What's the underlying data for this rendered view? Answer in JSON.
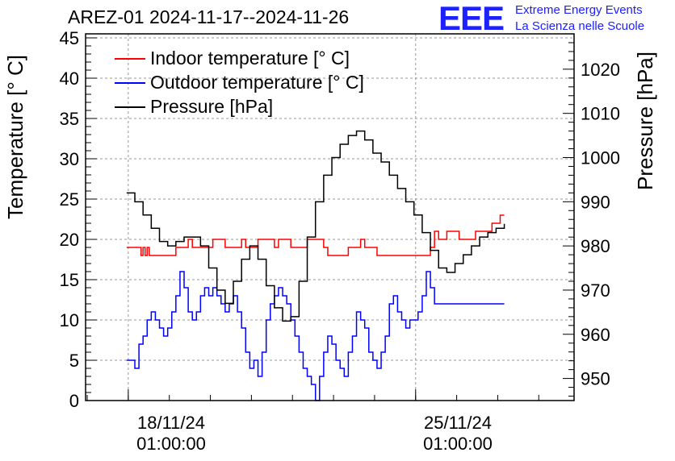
{
  "title": "AREZ-01 2024-11-17--2024-11-26",
  "logo": {
    "text": "EEE",
    "line1": "Extreme Energy Events",
    "line2": "La Scienza nelle Scuole"
  },
  "colors": {
    "indoor": "#ff0000",
    "outdoor": "#0000ff",
    "pressure": "#000000",
    "logo": "#1d20ff"
  },
  "chart_data": {
    "type": "line",
    "ylabel_left": "Temperature [° C]",
    "ylabel_right": "Pressure [hPa]",
    "y_left_lim": [
      0,
      45.5
    ],
    "y_right_lim": [
      945,
      1028
    ],
    "y_left_ticks": [
      0,
      5,
      10,
      15,
      20,
      25,
      30,
      35,
      40,
      45
    ],
    "y_right_ticks": [
      950,
      960,
      970,
      980,
      990,
      1000,
      1010,
      1020
    ],
    "x_ticks": [
      {
        "line1": "18/11/24",
        "line2": "01:00:00",
        "day": 1.04
      },
      {
        "line1": "25/11/24",
        "line2": "01:00:00",
        "day": 8.04
      }
    ],
    "x_range_days": [
      0,
      11.9
    ],
    "grid": true,
    "legend_placement": "top-left",
    "series": [
      {
        "name": "Indoor temperature [° C]",
        "axis": "left",
        "x": [
          1.0,
          1.3,
          1.35,
          1.4,
          1.45,
          1.5,
          1.55,
          1.6,
          2.1,
          2.2,
          2.5,
          2.6,
          3.0,
          3.1,
          3.4,
          3.5,
          3.8,
          3.9,
          4.2,
          4.3,
          4.6,
          4.7,
          5.0,
          5.1,
          5.4,
          5.5,
          5.8,
          5.9,
          6.3,
          6.4,
          6.7,
          6.8,
          7.1,
          7.2,
          7.4,
          7.5,
          7.8,
          8.0,
          8.1,
          8.4,
          8.5,
          8.6,
          8.75,
          8.8,
          9.0,
          9.1,
          9.4,
          9.5,
          9.6,
          9.8,
          9.9,
          10.0,
          10.1,
          10.2
        ],
        "y": [
          19,
          19,
          18,
          19,
          18,
          19,
          18,
          18,
          18,
          19,
          20,
          19,
          19,
          20,
          19,
          19,
          20,
          19,
          20,
          20,
          19,
          20,
          19,
          19,
          20,
          20,
          19,
          18,
          18,
          19,
          20,
          19,
          18,
          18,
          18,
          18,
          18,
          18,
          18,
          19,
          21,
          20,
          20,
          21,
          21,
          20,
          20,
          21,
          21,
          21,
          22,
          22,
          23,
          23
        ]
      },
      {
        "name": "Outdoor temperature [° C]",
        "axis": "left",
        "x": [
          1.0,
          1.1,
          1.2,
          1.3,
          1.4,
          1.5,
          1.6,
          1.7,
          1.8,
          1.9,
          2.0,
          2.1,
          2.2,
          2.3,
          2.4,
          2.5,
          2.6,
          2.7,
          2.8,
          2.9,
          3.0,
          3.1,
          3.2,
          3.3,
          3.4,
          3.5,
          3.6,
          3.7,
          3.8,
          3.9,
          4.0,
          4.1,
          4.2,
          4.3,
          4.4,
          4.5,
          4.6,
          4.7,
          4.8,
          4.9,
          5.0,
          5.1,
          5.2,
          5.3,
          5.4,
          5.5,
          5.6,
          5.7,
          5.8,
          5.9,
          6.0,
          6.1,
          6.2,
          6.3,
          6.4,
          6.5,
          6.6,
          6.7,
          6.8,
          6.9,
          7.0,
          7.1,
          7.2,
          7.3,
          7.4,
          7.5,
          7.6,
          7.7,
          7.8,
          7.9,
          8.0,
          8.1,
          8.2,
          8.3,
          8.4,
          8.5,
          8.6,
          8.7,
          8.8,
          8.9,
          9.0,
          9.1,
          9.2,
          9.3,
          9.4,
          9.5,
          9.6,
          9.7,
          9.8,
          9.9,
          10.0,
          10.1,
          10.2
        ],
        "y": [
          5,
          5,
          4,
          7,
          8,
          10,
          11,
          10,
          9,
          8,
          9,
          11,
          13,
          16,
          14,
          11,
          10,
          11,
          13,
          14,
          13,
          14,
          13,
          12,
          11,
          12,
          13,
          11,
          9,
          6,
          4,
          5,
          3,
          6,
          10,
          12,
          13,
          14,
          13,
          12,
          10,
          8,
          6,
          4,
          3,
          2,
          0,
          3,
          6,
          8,
          7,
          5,
          4,
          3,
          6,
          8,
          11,
          10,
          9,
          6,
          5,
          4,
          6,
          8,
          12,
          13,
          11,
          10,
          9,
          10,
          10,
          11,
          13,
          16,
          14,
          12,
          12,
          12,
          12,
          12,
          12,
          12,
          12,
          12,
          12,
          12,
          12,
          12,
          12,
          12,
          12,
          12,
          12
        ],
        "_note": ""
      },
      {
        "name": "Pressure [hPa]",
        "axis": "right",
        "x": [
          1.0,
          1.2,
          1.4,
          1.6,
          1.8,
          2.0,
          2.2,
          2.4,
          2.6,
          2.8,
          3.0,
          3.2,
          3.4,
          3.6,
          3.8,
          4.0,
          4.2,
          4.4,
          4.6,
          4.8,
          5.0,
          5.2,
          5.4,
          5.6,
          5.8,
          6.0,
          6.2,
          6.4,
          6.6,
          6.8,
          7.0,
          7.2,
          7.4,
          7.6,
          7.8,
          8.0,
          8.2,
          8.4,
          8.6,
          8.8,
          9.0,
          9.2,
          9.4,
          9.6,
          9.8,
          10.0,
          10.2
        ],
        "y": [
          992,
          990,
          987,
          984,
          981,
          980,
          981,
          982,
          982,
          980,
          975,
          970,
          967,
          972,
          977,
          980,
          977,
          971,
          966,
          963,
          964,
          972,
          982,
          990,
          996,
          1000,
          1003,
          1005,
          1006,
          1004,
          1001,
          999,
          996,
          993,
          990,
          987,
          983,
          979,
          975,
          974,
          976,
          978,
          980,
          982,
          983,
          984,
          985
        ]
      }
    ]
  }
}
